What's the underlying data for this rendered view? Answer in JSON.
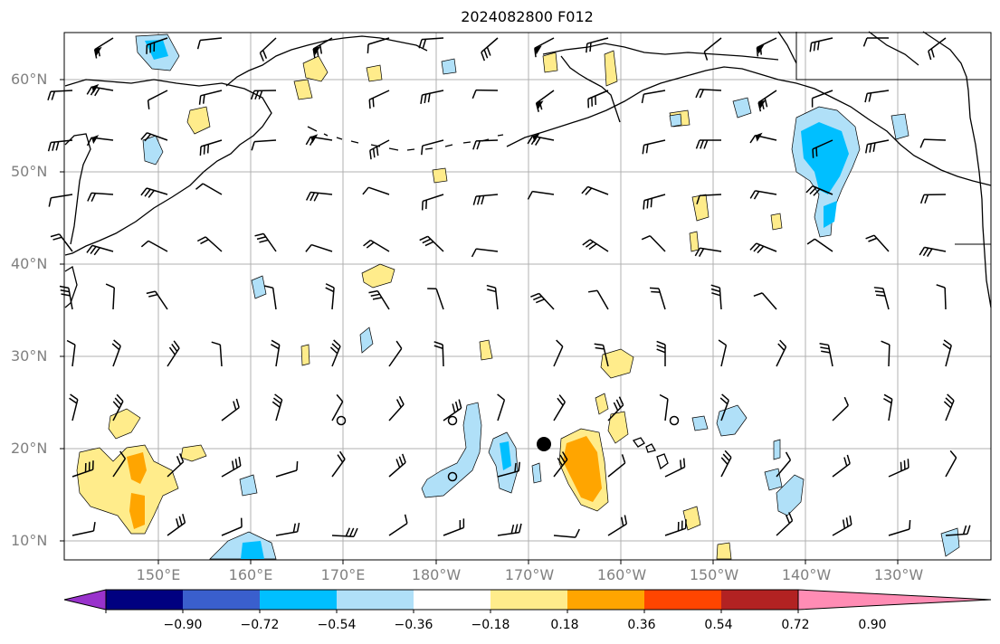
{
  "title": "2024082800 F012",
  "lat_labels": [
    "60°N",
    "50°N",
    "40°N",
    "30°N",
    "20°N",
    "10°N"
  ],
  "lon_labels": [
    "150°E",
    "160°E",
    "170°E",
    "180°W",
    "170°W",
    "160°W",
    "150°W",
    "140°W",
    "130°W"
  ],
  "colorbar": {
    "ticks": [
      "−0.90",
      "−0.72",
      "−0.54",
      "−0.36",
      "−0.18",
      "0.18",
      "0.36",
      "0.54",
      "0.72",
      "0.90"
    ],
    "colors": [
      "#9932cc",
      "#000080",
      "#3a5fcd",
      "#00bfff",
      "#b0e0f8",
      "#ffffff",
      "#ffec8b",
      "#ffa500",
      "#ff4500",
      "#b22222",
      "#ff8cb4"
    ]
  }
}
